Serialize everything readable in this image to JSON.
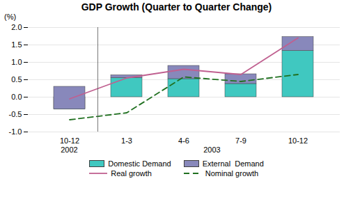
{
  "chart_data": {
    "type": "bar",
    "title": "GDP Growth (Quarter to Quarter Change)",
    "ylabel": "(%)",
    "categories": [
      "10-12",
      "1-3",
      "4-6",
      "7-9",
      "10-12"
    ],
    "category_groups": [
      "2002",
      "2003",
      "2003",
      "2003",
      "2003"
    ],
    "stacked": true,
    "series": [
      {
        "name": "Domestic Demand",
        "type": "bar",
        "color": "#40C8C0",
        "values": [
          -0.35,
          0.55,
          0.52,
          0.38,
          1.33
        ]
      },
      {
        "name": "External  Demand",
        "type": "bar",
        "color": "#8888BB",
        "values": [
          0.65,
          0.08,
          0.38,
          0.28,
          0.4
        ]
      },
      {
        "name": "Real growth",
        "type": "line",
        "color": "#C06090",
        "line_style": "solid",
        "values": [
          -0.05,
          0.55,
          0.8,
          0.65,
          1.7
        ]
      },
      {
        "name": "Nominal growth",
        "type": "line",
        "color": "#207020",
        "line_style": "dashed",
        "values": [
          -0.65,
          -0.45,
          0.58,
          0.45,
          0.65
        ]
      }
    ],
    "ylim": [
      -1.0,
      2.0
    ],
    "yticks": [
      {
        "value": -1.0,
        "label": "-1.0"
      },
      -0.5,
      {
        "value": 0.0,
        "label": "0.0"
      },
      0.5,
      {
        "value": 1.0,
        "label": "1.0"
      },
      1.5,
      {
        "value": 2.0,
        "label": "2.0"
      }
    ],
    "grid": true,
    "legend": "bottom"
  }
}
